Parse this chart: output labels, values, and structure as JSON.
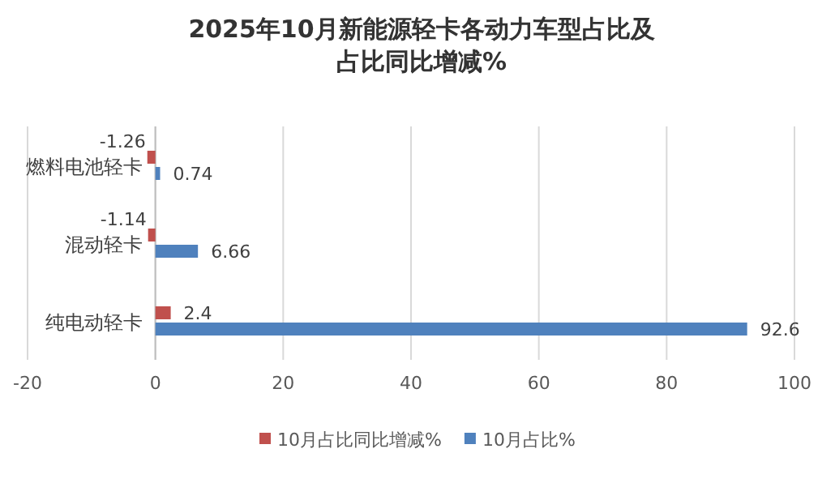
{
  "chart_data": {
    "type": "bar",
    "orientation": "horizontal",
    "title": "2025年10月新能源轻卡各动力车型占比及占比同比增减%",
    "categories": [
      "燃料电池轻卡",
      "混动轻卡",
      "纯电动轻卡"
    ],
    "series": [
      {
        "name": "10月占比同比增减%",
        "color": "#c0504d",
        "values": [
          -1.26,
          -1.14,
          2.4
        ]
      },
      {
        "name": "10月占比%",
        "color": "#4f81bd",
        "values": [
          0.74,
          6.66,
          92.6
        ]
      }
    ],
    "xlim": [
      -20,
      100
    ],
    "xticks": [
      -20,
      0,
      20,
      40,
      60,
      80,
      100
    ],
    "grid": "x",
    "legend": "bottom",
    "data_labels": true
  }
}
